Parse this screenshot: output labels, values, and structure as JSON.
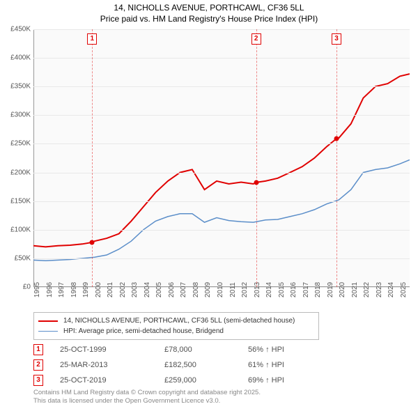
{
  "title": {
    "line1": "14, NICHOLLS AVENUE, PORTHCAWL, CF36 5LL",
    "line2": "Price paid vs. HM Land Registry's House Price Index (HPI)",
    "fontsize": 12,
    "color": "#000000"
  },
  "chart": {
    "type": "line",
    "background": "#fafafa",
    "grid_color": "#e8e8e8",
    "axis_color": "#999999",
    "x": {
      "min": 1995,
      "max": 2025.8,
      "ticks": [
        1995,
        1996,
        1997,
        1998,
        1999,
        2000,
        2001,
        2002,
        2003,
        2004,
        2005,
        2006,
        2007,
        2008,
        2009,
        2010,
        2011,
        2012,
        2013,
        2014,
        2015,
        2016,
        2017,
        2018,
        2019,
        2020,
        2021,
        2022,
        2023,
        2024,
        2025
      ],
      "tick_labels": [
        "1995",
        "1996",
        "1997",
        "1998",
        "1999",
        "2000",
        "2001",
        "2002",
        "2003",
        "2004",
        "2005",
        "2006",
        "2007",
        "2008",
        "2009",
        "2010",
        "2011",
        "2012",
        "2013",
        "2014",
        "2015",
        "2016",
        "2017",
        "2018",
        "2019",
        "2020",
        "2021",
        "2022",
        "2023",
        "2024",
        "2025"
      ],
      "label_fontsize": 10
    },
    "y": {
      "min": 0,
      "max": 450000,
      "ticks": [
        0,
        50000,
        100000,
        150000,
        200000,
        250000,
        300000,
        350000,
        400000,
        450000
      ],
      "tick_labels": [
        "£0",
        "£50K",
        "£100K",
        "£150K",
        "£200K",
        "£250K",
        "£300K",
        "£350K",
        "£400K",
        "£450K"
      ],
      "label_fontsize": 10
    },
    "series": [
      {
        "name": "price_paid",
        "label": "14, NICHOLLS AVENUE, PORTHCAWL, CF36 5LL (semi-detached house)",
        "color": "#e00000",
        "line_width": 2,
        "x": [
          1995,
          1996,
          1997,
          1998,
          1999,
          1999.81,
          2000,
          2001,
          2002,
          2003,
          2004,
          2005,
          2006,
          2007,
          2008,
          2009,
          2010,
          2011,
          2012,
          2013,
          2013.23,
          2014,
          2015,
          2016,
          2017,
          2018,
          2019,
          2019.81,
          2020,
          2021,
          2022,
          2023,
          2024,
          2025,
          2025.8
        ],
        "y": [
          72000,
          70000,
          72000,
          73000,
          75000,
          78000,
          80000,
          85000,
          93000,
          115000,
          140000,
          165000,
          185000,
          200000,
          205000,
          170000,
          185000,
          180000,
          183000,
          180000,
          182500,
          185000,
          190000,
          200000,
          210000,
          225000,
          245000,
          259000,
          260000,
          285000,
          330000,
          350000,
          355000,
          368000,
          372000
        ]
      },
      {
        "name": "hpi",
        "label": "HPI: Average price, semi-detached house, Bridgend",
        "color": "#5b8ec9",
        "line_width": 1.5,
        "x": [
          1995,
          1996,
          1997,
          1998,
          1999,
          2000,
          2001,
          2002,
          2003,
          2004,
          2005,
          2006,
          2007,
          2008,
          2009,
          2010,
          2011,
          2012,
          2013,
          2014,
          2015,
          2016,
          2017,
          2018,
          2019,
          2020,
          2021,
          2022,
          2023,
          2024,
          2025,
          2025.8
        ],
        "y": [
          47000,
          46000,
          47000,
          48000,
          50000,
          52000,
          56000,
          66000,
          80000,
          100000,
          115000,
          123000,
          128000,
          128000,
          113000,
          121000,
          116000,
          114000,
          113000,
          117000,
          118000,
          123000,
          128000,
          135000,
          145000,
          152000,
          170000,
          200000,
          205000,
          208000,
          215000,
          222000
        ]
      }
    ],
    "sale_markers": [
      {
        "n": "1",
        "x": 1999.81,
        "y": 78000
      },
      {
        "n": "2",
        "x": 2013.23,
        "y": 182500
      },
      {
        "n": "3",
        "x": 2019.81,
        "y": 259000
      }
    ],
    "marker_border_color": "#e00000",
    "marker_text_color": "#e00000"
  },
  "legend": {
    "border_color": "#bbbbbb",
    "items": [
      {
        "color": "#e00000",
        "width": 2,
        "label": "14, NICHOLLS AVENUE, PORTHCAWL, CF36 5LL (semi-detached house)"
      },
      {
        "color": "#5b8ec9",
        "width": 1.5,
        "label": "HPI: Average price, semi-detached house, Bridgend"
      }
    ]
  },
  "sales": [
    {
      "n": "1",
      "date": "25-OCT-1999",
      "price": "£78,000",
      "hpi": "56% ↑ HPI"
    },
    {
      "n": "2",
      "date": "25-MAR-2013",
      "price": "£182,500",
      "hpi": "61% ↑ HPI"
    },
    {
      "n": "3",
      "date": "25-OCT-2019",
      "price": "£259,000",
      "hpi": "69% ↑ HPI"
    }
  ],
  "footer": {
    "line1": "Contains HM Land Registry data © Crown copyright and database right 2025.",
    "line2": "This data is licensed under the Open Government Licence v3.0.",
    "color": "#888888",
    "fontsize": 9.5
  }
}
